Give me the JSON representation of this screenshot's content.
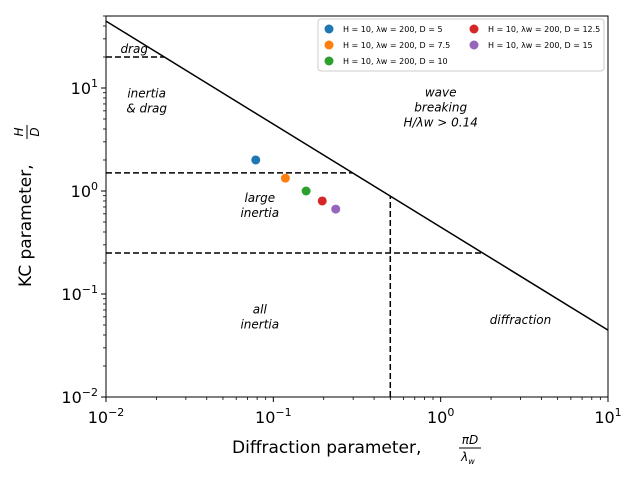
{
  "chart_data": {
    "type": "scatter",
    "xscale": "log",
    "yscale": "log",
    "xlim": [
      0.01,
      10
    ],
    "ylim": [
      0.01,
      50
    ],
    "grid": false,
    "legend_placement": "top-right",
    "x_ticks": [
      {
        "value": 0.01,
        "base": "10",
        "exp": "−2"
      },
      {
        "value": 0.1,
        "base": "10",
        "exp": "−1"
      },
      {
        "value": 1,
        "base": "10",
        "exp": "0"
      },
      {
        "value": 10,
        "base": "10",
        "exp": "1"
      }
    ],
    "y_ticks": [
      {
        "value": 0.01,
        "base": "10",
        "exp": "−2"
      },
      {
        "value": 0.1,
        "base": "10",
        "exp": "−1"
      },
      {
        "value": 1,
        "base": "10",
        "exp": "0"
      },
      {
        "value": 10,
        "base": "10",
        "exp": "1"
      }
    ],
    "xlabel": {
      "text": "Diffraction parameter, ",
      "frac_num": "πD",
      "frac_den": "λ",
      "frac_den_sub": "w"
    },
    "ylabel": {
      "text": "KC parameter, ",
      "frac_num": "H",
      "frac_den": "D"
    },
    "series": [
      {
        "name": "H = 10, λw = 200, D = 5",
        "color": "#1f77b4",
        "x": [
          0.0785
        ],
        "y": [
          2.0
        ]
      },
      {
        "name": "H = 10, λw = 200, D = 7.5",
        "color": "#ff7f0e",
        "x": [
          0.118
        ],
        "y": [
          1.333
        ]
      },
      {
        "name": "H = 10, λw = 200, D = 10",
        "color": "#2ca02c",
        "x": [
          0.157
        ],
        "y": [
          1.0
        ]
      },
      {
        "name": "H = 10, λw = 200, D = 12.5",
        "color": "#d62728",
        "x": [
          0.196
        ],
        "y": [
          0.8
        ]
      },
      {
        "name": "H = 10, λw = 200, D = 15",
        "color": "#9467bd",
        "x": [
          0.236
        ],
        "y": [
          0.667
        ]
      }
    ],
    "boundaries": [
      {
        "kind": "solid",
        "points": [
          [
            0.01,
            44.6
          ],
          [
            10,
            0.0446
          ]
        ]
      },
      {
        "kind": "dashed",
        "points": [
          [
            0.01,
            20
          ],
          [
            0.0223,
            20
          ]
        ]
      },
      {
        "kind": "dashed",
        "points": [
          [
            0.01,
            1.5
          ],
          [
            0.297,
            1.5
          ]
        ]
      },
      {
        "kind": "dashed",
        "points": [
          [
            0.01,
            0.25
          ],
          [
            1.78,
            0.25
          ]
        ]
      },
      {
        "kind": "dashed",
        "points": [
          [
            0.5,
            0.01
          ],
          [
            0.5,
            0.89
          ]
        ]
      }
    ],
    "region_labels": [
      {
        "lines": [
          "drag"
        ],
        "x": 0.0122,
        "y": 24
      },
      {
        "lines": [
          "inertia",
          "& drag"
        ],
        "x": 0.0175,
        "y": 7.5
      },
      {
        "lines": [
          "wave",
          "breaking",
          "H/λw > 0.14"
        ],
        "x": 1.0,
        "y": 6.5
      },
      {
        "lines": [
          "large",
          "inertia"
        ],
        "x": 0.083,
        "y": 0.72
      },
      {
        "lines": [
          "all",
          "inertia"
        ],
        "x": 0.083,
        "y": 0.06
      },
      {
        "lines": [
          "diffraction"
        ],
        "x": 3.0,
        "y": 0.056
      }
    ]
  }
}
